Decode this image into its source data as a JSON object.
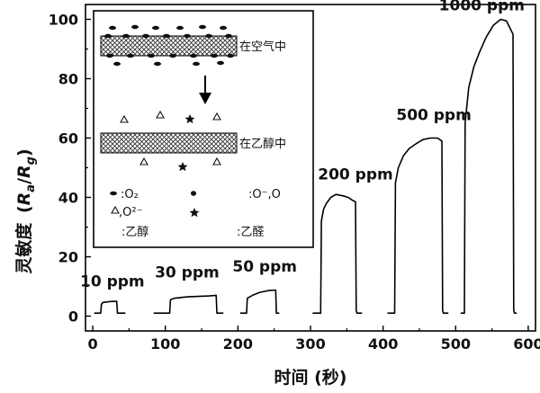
{
  "chart_data": {
    "type": "line",
    "xlabel": "时间 (秒)",
    "ylabel_prefix": "灵敏度",
    "ylabel_formula": "(Ra/Rg)",
    "ylabel_parts": {
      "open": "(",
      "R1": "R",
      "s1": "a",
      "slash": "/",
      "R2": "R",
      "s2": "g",
      "close": ")"
    },
    "xlim": [
      -10,
      610
    ],
    "ylim": [
      -5,
      105
    ],
    "xticks": [
      0,
      100,
      200,
      300,
      400,
      500,
      600
    ],
    "yticks": [
      0,
      20,
      40,
      60,
      80,
      100
    ],
    "series": [
      {
        "label": "10 ppm",
        "points": [
          [
            2,
            1
          ],
          [
            8,
            1
          ],
          [
            11,
            1
          ],
          [
            12,
            4
          ],
          [
            14,
            4.6
          ],
          [
            24,
            4.9
          ],
          [
            33,
            5
          ],
          [
            34,
            1
          ],
          [
            45,
            1
          ]
        ]
      },
      {
        "label": "30 ppm",
        "points": [
          [
            84,
            1
          ],
          [
            102,
            1
          ],
          [
            106,
            1
          ],
          [
            107,
            5.5
          ],
          [
            112,
            6
          ],
          [
            130,
            6.5
          ],
          [
            160,
            6.8
          ],
          [
            170,
            7
          ],
          [
            171,
            1
          ],
          [
            180,
            1
          ]
        ]
      },
      {
        "label": "50 ppm",
        "points": [
          [
            203,
            1
          ],
          [
            208,
            1
          ],
          [
            212,
            1
          ],
          [
            213,
            6
          ],
          [
            220,
            7
          ],
          [
            230,
            8
          ],
          [
            242,
            8.6
          ],
          [
            252,
            8.8
          ],
          [
            253,
            1
          ],
          [
            257,
            1
          ]
        ]
      },
      {
        "label": "200 ppm",
        "points": [
          [
            303,
            1
          ],
          [
            314,
            1
          ],
          [
            315,
            32
          ],
          [
            318,
            36
          ],
          [
            322,
            38
          ],
          [
            328,
            40
          ],
          [
            335,
            41
          ],
          [
            345,
            40.5
          ],
          [
            352,
            40
          ],
          [
            358,
            39
          ],
          [
            362,
            38.5
          ],
          [
            363,
            2
          ],
          [
            364,
            1
          ],
          [
            371,
            1
          ]
        ]
      },
      {
        "label": "500 ppm",
        "points": [
          [
            406,
            1
          ],
          [
            416,
            1
          ],
          [
            417,
            45
          ],
          [
            421,
            50
          ],
          [
            428,
            54
          ],
          [
            436,
            56.5
          ],
          [
            445,
            58
          ],
          [
            455,
            59.5
          ],
          [
            465,
            60
          ],
          [
            475,
            60
          ],
          [
            481,
            59
          ],
          [
            482,
            2
          ],
          [
            483,
            1
          ],
          [
            490,
            1
          ]
        ]
      },
      {
        "label": "1000 ppm",
        "points": [
          [
            507,
            1
          ],
          [
            512,
            1
          ],
          [
            513,
            65
          ],
          [
            518,
            77
          ],
          [
            525,
            84
          ],
          [
            533,
            89
          ],
          [
            542,
            94
          ],
          [
            552,
            98
          ],
          [
            562,
            100
          ],
          [
            570,
            99.5
          ],
          [
            579,
            95
          ],
          [
            580,
            2
          ],
          [
            581,
            1
          ],
          [
            584,
            1
          ]
        ]
      }
    ],
    "annotations": [
      {
        "text": "10 ppm",
        "x": 27,
        "y": 10
      },
      {
        "text": "30 ppm",
        "x": 130,
        "y": 13
      },
      {
        "text": "50 ppm",
        "x": 237,
        "y": 15
      },
      {
        "text": "200 ppm",
        "x": 362,
        "y": 46
      },
      {
        "text": "500 ppm",
        "x": 470,
        "y": 66
      },
      {
        "text": "1000 ppm",
        "x": 536,
        "y": 103
      }
    ]
  },
  "inset": {
    "label_air": "在空气中",
    "label_ethanol": "在乙醇中",
    "legend": [
      {
        "symbol": ":O₂",
        "meaning": "",
        "id": "o2"
      },
      {
        "symbol": ":O⁻,O",
        "meaning": "",
        "id": "oneg"
      },
      {
        "symbol": ",O²⁻",
        "meaning": "",
        "id": "o2neg"
      },
      {
        "symbol": ":乙醇",
        "meaning": "",
        "id": "ethanol"
      },
      {
        "symbol": ":乙醛",
        "meaning": "",
        "id": "acetaldehyde"
      }
    ]
  }
}
